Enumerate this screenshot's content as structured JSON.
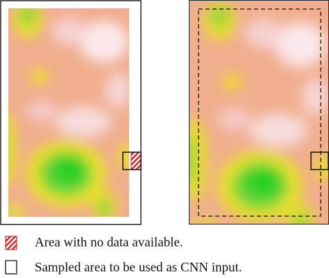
{
  "legend": {
    "items": [
      {
        "label": "Area with no data available."
      },
      {
        "label": "Sampled area to be used as CNN input."
      }
    ]
  }
}
